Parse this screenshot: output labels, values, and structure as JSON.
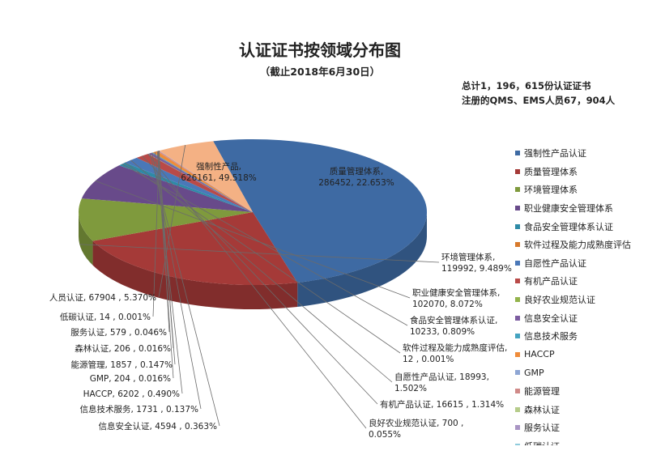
{
  "header": {
    "title": "认证证书按领域分布图",
    "subtitle": "（截止2018年6月30日）",
    "note_total": "总计1，196，615份认证证书",
    "note_personnel": "注册的QMS、EMS人员67，904人"
  },
  "chart_data": {
    "type": "pie",
    "title": "认证证书按领域分布图",
    "subtitle": "（截止2018年6月30日）",
    "legend_position": "right",
    "slices": [
      {
        "name": "强制性产品认证",
        "value": 626161,
        "label": "强制性产品,\n626161, 49.518%",
        "color": "#3e6aa3"
      },
      {
        "name": "质量管理体系",
        "value": 286452,
        "label": "质量管理体系,\n286452, 22.653%",
        "color": "#a53a38"
      },
      {
        "name": "环境管理体系",
        "value": 119992,
        "label": "环境管理体系,\n119992, 9.489%",
        "color": "#7f9a3d"
      },
      {
        "name": "职业健康安全管理体系",
        "value": 102070,
        "label": "职业健康安全管理体系,\n102070, 8.072%",
        "color": "#684a8a"
      },
      {
        "name": "食品安全管理体系认证",
        "value": 10233,
        "label": "食品安全管理体系认证,\n10233, 0.809%",
        "color": "#2e8aa6"
      },
      {
        "name": "软件过程及能力成熟度评估",
        "value": 12,
        "label": "软件过程及能力成熟度评估,\n12 , 0.001%",
        "color": "#d77a2c"
      },
      {
        "name": "自愿性产品认证",
        "value": 18993,
        "label": "自愿性产品认证, 18993,\n1.502%",
        "color": "#4a78b8"
      },
      {
        "name": "有机产品认证",
        "value": 16615,
        "label": "有机产品认证, 16615 , 1.314%",
        "color": "#b94a48"
      },
      {
        "name": "良好农业规范认证",
        "value": 700,
        "label": "良好农业规范认证, 700 ,\n0.055%",
        "color": "#93b34b"
      },
      {
        "name": "信息安全认证",
        "value": 4594,
        "label": "信息安全认证, 4594 , 0.363%",
        "color": "#7c5ca0"
      },
      {
        "name": "信息技术服务",
        "value": 1731,
        "label": "信息技术服务, 1731 , 0.137%",
        "color": "#44a3c0"
      },
      {
        "name": "HACCP",
        "value": 6202,
        "label": "HACCP, 6202 , 0.490%",
        "color": "#ef8c3a"
      },
      {
        "name": "GMP",
        "value": 204,
        "label": "GMP, 204 , 0.016%",
        "color": "#8ea6d4"
      },
      {
        "name": "能源管理",
        "value": 1857,
        "label": "能源管理, 1857 , 0.147%",
        "color": "#d08a88"
      },
      {
        "name": "森林认证",
        "value": 206,
        "label": "森林认证, 206 , 0.016%",
        "color": "#b6cc8a"
      },
      {
        "name": "服务认证",
        "value": 579,
        "label": "服务认证, 579 , 0.046%",
        "color": "#a995c4"
      },
      {
        "name": "低碳认证",
        "value": 14,
        "label": "低碳认证, 14 , 0.001%",
        "color": "#8fcbdc"
      },
      {
        "name": "人员认证",
        "value": 67904,
        "label": "人员认证, 67904 , 5.370%",
        "color": "#f4b184"
      }
    ]
  }
}
